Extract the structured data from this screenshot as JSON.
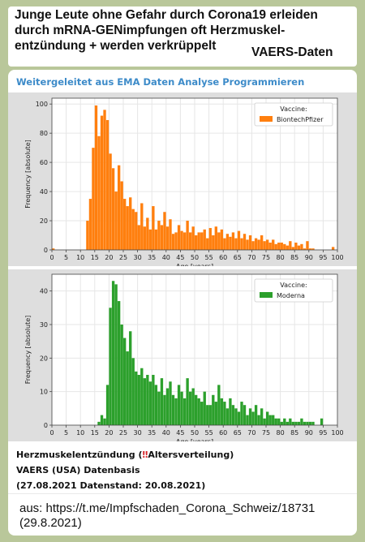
{
  "headline": {
    "lines": "Junge Leute ohne Gefahr durch Corona19 erleiden\ndurch mRNA-GENimpfungen oft Herzmuskel-\nentzündung + werden verkrüppelt",
    "right": "VAERS-Daten"
  },
  "forwarded": "Weitergeleitet aus EMA Daten Analyse Programmieren",
  "caption": {
    "line1_a": "Herzmuskelentzündung (",
    "line1_bang": "‼",
    "line1_b": "Altersverteilung)",
    "line2": "VAERS (USA) Datenbasis",
    "line3": "(27.08.2021 Datenstand: 20.08.2021)"
  },
  "source": {
    "line1": "aus: https://t.me/Impfschaden_Corona_Schweiz/18731",
    "line2": "(29.8.2021)"
  },
  "chart_data": [
    {
      "type": "bar",
      "xlabel": "Age [years]",
      "ylabel": "Frequency [absolute]",
      "xlim": [
        0,
        100
      ],
      "ylim": [
        0,
        104
      ],
      "xticks": [
        0,
        5,
        10,
        15,
        20,
        25,
        30,
        35,
        40,
        45,
        50,
        55,
        60,
        65,
        70,
        75,
        80,
        85,
        90,
        95,
        100
      ],
      "yticks": [
        0,
        20,
        40,
        60,
        80,
        100
      ],
      "grid": true,
      "legend_title": "Vaccine:",
      "legend_position": "top-right",
      "series": [
        {
          "name": "BiontechPfizer",
          "color": "#ff7f0e"
        }
      ],
      "x": [
        0,
        1,
        12,
        13,
        14,
        15,
        16,
        17,
        18,
        19,
        20,
        21,
        22,
        23,
        24,
        25,
        26,
        27,
        28,
        29,
        30,
        31,
        32,
        33,
        34,
        35,
        36,
        37,
        38,
        39,
        40,
        41,
        42,
        43,
        44,
        45,
        46,
        47,
        48,
        49,
        50,
        51,
        52,
        53,
        54,
        55,
        56,
        57,
        58,
        59,
        60,
        61,
        62,
        63,
        64,
        65,
        66,
        67,
        68,
        69,
        70,
        71,
        72,
        73,
        74,
        75,
        76,
        77,
        78,
        79,
        80,
        81,
        82,
        83,
        84,
        85,
        86,
        87,
        88,
        89,
        90,
        91,
        92,
        93,
        94,
        95,
        96,
        97,
        98,
        99
      ],
      "values": [
        1,
        0,
        20,
        35,
        70,
        99,
        78,
        92,
        96,
        89,
        66,
        56,
        40,
        58,
        47,
        35,
        30,
        36,
        28,
        26,
        17,
        32,
        16,
        22,
        14,
        30,
        14,
        20,
        17,
        26,
        16,
        21,
        11,
        12,
        17,
        13,
        12,
        20,
        12,
        16,
        10,
        12,
        12,
        14,
        8,
        15,
        10,
        16,
        12,
        14,
        8,
        11,
        9,
        12,
        8,
        13,
        8,
        11,
        7,
        10,
        6,
        8,
        7,
        10,
        6,
        7,
        5,
        7,
        4,
        5,
        5,
        4,
        3,
        6,
        2,
        5,
        3,
        4,
        1,
        6,
        1,
        1,
        0,
        0,
        0,
        0,
        0,
        0,
        2,
        0
      ]
    },
    {
      "type": "bar",
      "xlabel": "Age [years]",
      "ylabel": "Frequency [absolute]",
      "xlim": [
        0,
        100
      ],
      "ylim": [
        0,
        45
      ],
      "xticks": [
        0,
        5,
        10,
        15,
        20,
        25,
        30,
        35,
        40,
        45,
        50,
        55,
        60,
        65,
        70,
        75,
        80,
        85,
        90,
        95,
        100
      ],
      "yticks": [
        0,
        10,
        20,
        30,
        40
      ],
      "grid": true,
      "legend_title": "Vaccine:",
      "legend_position": "top-right",
      "series": [
        {
          "name": "Moderna",
          "color": "#2ca02c"
        }
      ],
      "x": [
        16,
        17,
        18,
        19,
        20,
        21,
        22,
        23,
        24,
        25,
        26,
        27,
        28,
        29,
        30,
        31,
        32,
        33,
        34,
        35,
        36,
        37,
        38,
        39,
        40,
        41,
        42,
        43,
        44,
        45,
        46,
        47,
        48,
        49,
        50,
        51,
        52,
        53,
        54,
        55,
        56,
        57,
        58,
        59,
        60,
        61,
        62,
        63,
        64,
        65,
        66,
        67,
        68,
        69,
        70,
        71,
        72,
        73,
        74,
        75,
        76,
        77,
        78,
        79,
        80,
        81,
        82,
        83,
        84,
        85,
        86,
        87,
        88,
        89,
        90,
        91,
        92,
        93,
        94
      ],
      "values": [
        1,
        3,
        2,
        12,
        35,
        43,
        42,
        37,
        30,
        26,
        22,
        28,
        20,
        16,
        15,
        17,
        14,
        15,
        13,
        15,
        12,
        10,
        14,
        9,
        11,
        13,
        9,
        8,
        12,
        10,
        8,
        14,
        10,
        11,
        9,
        8,
        7,
        10,
        6,
        6,
        9,
        7,
        12,
        8,
        7,
        5,
        8,
        6,
        5,
        4,
        7,
        6,
        3,
        5,
        4,
        6,
        3,
        5,
        2,
        4,
        3,
        3,
        2,
        2,
        1,
        2,
        1,
        2,
        1,
        1,
        1,
        2,
        1,
        1,
        1,
        1,
        0,
        0,
        2
      ]
    }
  ]
}
